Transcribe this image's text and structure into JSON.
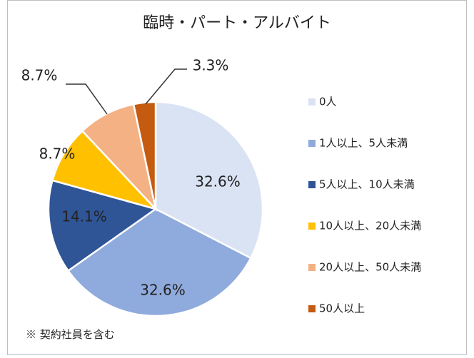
{
  "chart_data": {
    "type": "pie",
    "title": "臨時・パート・アルバイト",
    "categories": [
      "0人",
      "1人以上、5人未満",
      "5人以上、10人未満",
      "10人以上、20人未満",
      "20人以上、50人未満",
      "50人以上"
    ],
    "values": [
      32.6,
      32.6,
      14.1,
      8.7,
      8.7,
      3.3
    ],
    "value_labels": [
      "32.6%",
      "32.6%",
      "14.1%",
      "8.7%",
      "8.7%",
      "3.3%"
    ],
    "colors": [
      "#dae3f3",
      "#8faadc",
      "#2f5597",
      "#ffc000",
      "#f4b183",
      "#c55a11"
    ],
    "legend": "right",
    "note": "※ 契約社員を含む"
  }
}
